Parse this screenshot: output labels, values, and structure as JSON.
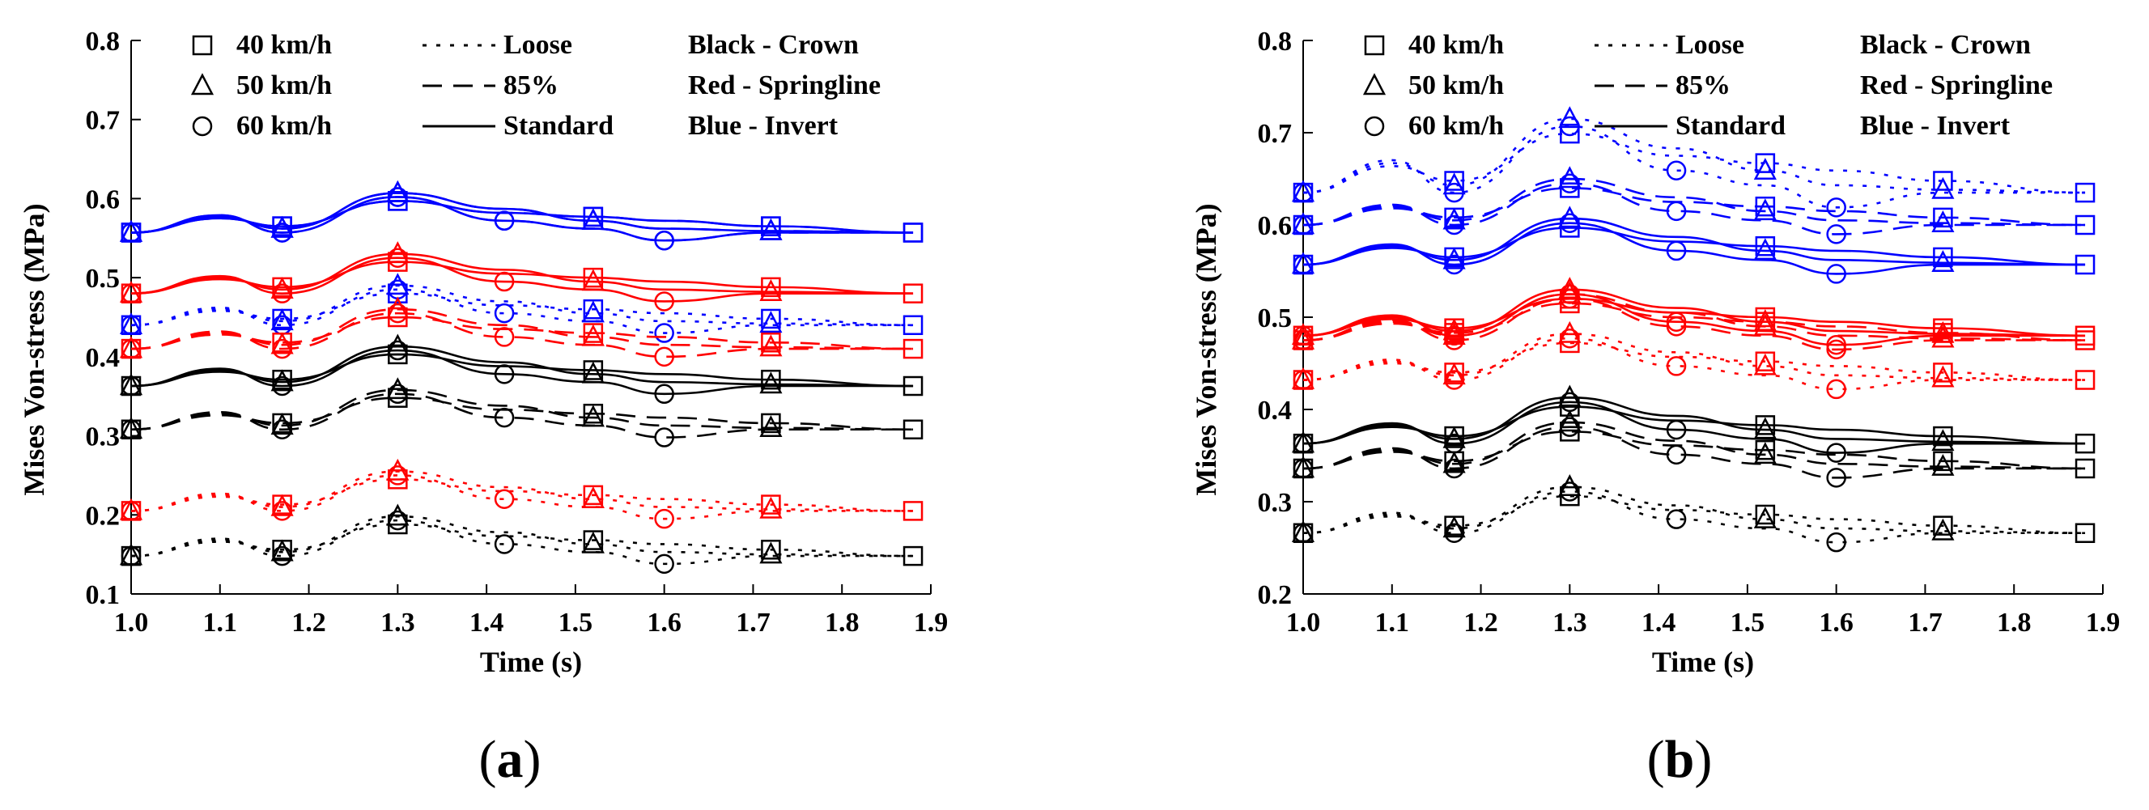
{
  "colors": {
    "crown": "#000000",
    "springline": "#ff0000",
    "invert": "#0000ff"
  },
  "legend": {
    "speeds": [
      {
        "label": "40 km/h",
        "marker": "square"
      },
      {
        "label": "50 km/h",
        "marker": "triangle"
      },
      {
        "label": "60 km/h",
        "marker": "circle"
      }
    ],
    "compaction": [
      {
        "label": "Loose",
        "style": "dotted"
      },
      {
        "label": "85%",
        "style": "dashed"
      },
      {
        "label": "Standard",
        "style": "solid"
      }
    ],
    "locations": [
      {
        "label": "Black - Crown"
      },
      {
        "label": "Red - Springline"
      },
      {
        "label": "Blue - Invert"
      }
    ]
  },
  "chart_data": [
    {
      "type": "line",
      "panel_label": "(a)",
      "xlabel": "Time (s)",
      "ylabel": "Mises Von-stress (MPa)",
      "xlim": [
        1.0,
        1.9
      ],
      "ylim": [
        0.1,
        0.8
      ],
      "xticks": [
        "1.0",
        "1.1",
        "1.2",
        "1.3",
        "1.4",
        "1.5",
        "1.6",
        "1.7",
        "1.8",
        "1.9"
      ],
      "yticks": [
        "0.1",
        "0.2",
        "0.3",
        "0.4",
        "0.5",
        "0.6",
        "0.7",
        "0.8"
      ],
      "series": [
        {
          "name": "Invert - Standard",
          "location": "invert",
          "compaction": "Standard",
          "base": 0.557
        },
        {
          "name": "Invert - 85%",
          "location": "invert",
          "compaction": "85%",
          "base": 0.557
        },
        {
          "name": "Invert - Loose",
          "location": "invert",
          "compaction": "Loose",
          "base": 0.44
        },
        {
          "name": "Springline - Standard",
          "location": "springline",
          "compaction": "Standard",
          "base": 0.48
        },
        {
          "name": "Springline - 85%",
          "location": "springline",
          "compaction": "85%",
          "base": 0.41
        },
        {
          "name": "Springline - Loose",
          "location": "springline",
          "compaction": "Loose",
          "base": 0.205
        },
        {
          "name": "Crown - Standard",
          "location": "crown",
          "compaction": "Standard",
          "base": 0.363
        },
        {
          "name": "Crown - 85%",
          "location": "crown",
          "compaction": "85%",
          "base": 0.308
        },
        {
          "name": "Crown - Loose",
          "location": "crown",
          "compaction": "Loose",
          "base": 0.148
        }
      ]
    },
    {
      "type": "line",
      "panel_label": "(b)",
      "xlabel": "Time (s)",
      "ylabel": "Mises Von-stress (MPa)",
      "xlim": [
        1.0,
        1.9
      ],
      "ylim": [
        0.2,
        0.8
      ],
      "xticks": [
        "1.0",
        "1.1",
        "1.2",
        "1.3",
        "1.4",
        "1.5",
        "1.6",
        "1.7",
        "1.8",
        "1.9"
      ],
      "yticks": [
        "0.2",
        "0.3",
        "0.4",
        "0.5",
        "0.6",
        "0.7",
        "0.8"
      ],
      "series": [
        {
          "name": "Invert - Loose",
          "location": "invert",
          "compaction": "Loose",
          "base": 0.635
        },
        {
          "name": "Invert - 85%",
          "location": "invert",
          "compaction": "85%",
          "base": 0.6
        },
        {
          "name": "Invert - Standard",
          "location": "invert",
          "compaction": "Standard",
          "base": 0.557
        },
        {
          "name": "Springline - Standard",
          "location": "springline",
          "compaction": "Standard",
          "base": 0.48
        },
        {
          "name": "Springline - 85%",
          "location": "springline",
          "compaction": "85%",
          "base": 0.475
        },
        {
          "name": "Springline - Loose",
          "location": "springline",
          "compaction": "Loose",
          "base": 0.432
        },
        {
          "name": "Crown - Standard",
          "location": "crown",
          "compaction": "Standard",
          "base": 0.363
        },
        {
          "name": "Crown - 85%",
          "location": "crown",
          "compaction": "85%",
          "base": 0.336
        },
        {
          "name": "Crown - Loose",
          "location": "crown",
          "compaction": "Loose",
          "base": 0.266
        }
      ]
    }
  ],
  "shape": {
    "x": [
      1.0,
      1.1,
      1.17,
      1.3,
      1.42,
      1.52,
      1.6,
      1.72,
      1.88
    ],
    "offsets": {
      "40": [
        0.0,
        0.018,
        0.008,
        0.04,
        0.025,
        0.02,
        0.015,
        0.008,
        0.0
      ],
      "50": [
        0.0,
        0.02,
        0.005,
        0.05,
        0.03,
        0.015,
        0.005,
        0.002,
        0.0
      ],
      "60": [
        0.0,
        0.022,
        0.0,
        0.045,
        0.015,
        0.005,
        -0.01,
        0.0,
        0.0
      ]
    },
    "loose_extra": 1.6
  }
}
